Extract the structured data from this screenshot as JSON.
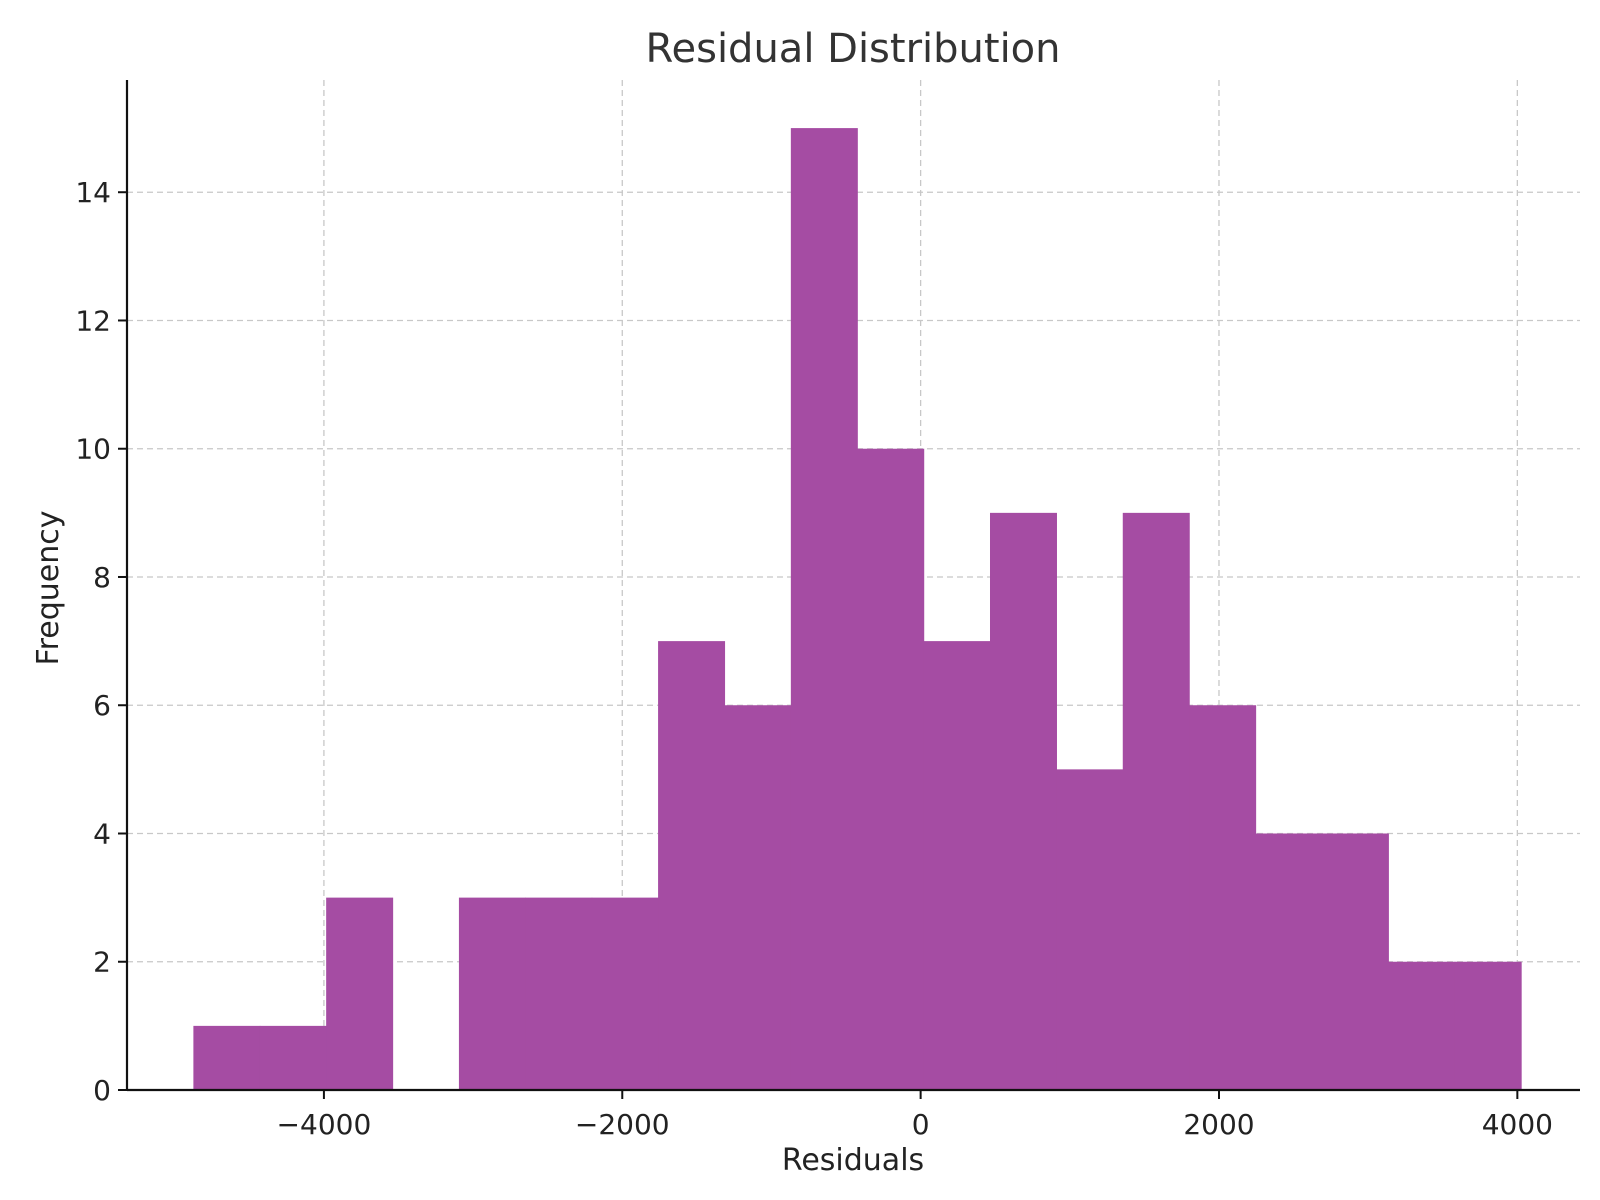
{
  "chart_data": {
    "type": "bar",
    "title": "Residual Distribution",
    "xlabel": "Residuals",
    "ylabel": "Frequency",
    "xlim": [
      -5320,
      4420
    ],
    "ylim": [
      0,
      15.75
    ],
    "x_ticks": [
      -4000,
      -2000,
      0,
      2000,
      4000
    ],
    "x_tick_labels": [
      "−4000",
      "−2000",
      "0",
      "2000",
      "4000"
    ],
    "y_ticks": [
      0,
      2,
      4,
      6,
      8,
      10,
      12,
      14
    ],
    "y_tick_labels": [
      "0",
      "2",
      "4",
      "6",
      "8",
      "10",
      "12",
      "14"
    ],
    "grid": true,
    "bar_color": "#a54ca3",
    "bins": [
      {
        "x0": -4875,
        "x1": -4430,
        "count": 1
      },
      {
        "x0": -4430,
        "x1": -3985,
        "count": 1
      },
      {
        "x0": -3985,
        "x1": -3540,
        "count": 3
      },
      {
        "x0": -3540,
        "x1": -3095,
        "count": 0
      },
      {
        "x0": -3095,
        "x1": -2650,
        "count": 3
      },
      {
        "x0": -2650,
        "x1": -2205,
        "count": 3
      },
      {
        "x0": -2205,
        "x1": -1760,
        "count": 3
      },
      {
        "x0": -1760,
        "x1": -1315,
        "count": 7
      },
      {
        "x0": -1315,
        "x1": -870,
        "count": 6
      },
      {
        "x0": -870,
        "x1": -425,
        "count": 15
      },
      {
        "x0": -425,
        "x1": 20,
        "count": 10
      },
      {
        "x0": 20,
        "x1": 465,
        "count": 7
      },
      {
        "x0": 465,
        "x1": 910,
        "count": 9
      },
      {
        "x0": 910,
        "x1": 1355,
        "count": 5
      },
      {
        "x0": 1355,
        "x1": 1800,
        "count": 9
      },
      {
        "x0": 1800,
        "x1": 2245,
        "count": 6
      },
      {
        "x0": 2245,
        "x1": 2690,
        "count": 4
      },
      {
        "x0": 2690,
        "x1": 3135,
        "count": 4
      },
      {
        "x0": 3135,
        "x1": 3580,
        "count": 2
      },
      {
        "x0": 3580,
        "x1": 4025,
        "count": 2
      }
    ]
  }
}
